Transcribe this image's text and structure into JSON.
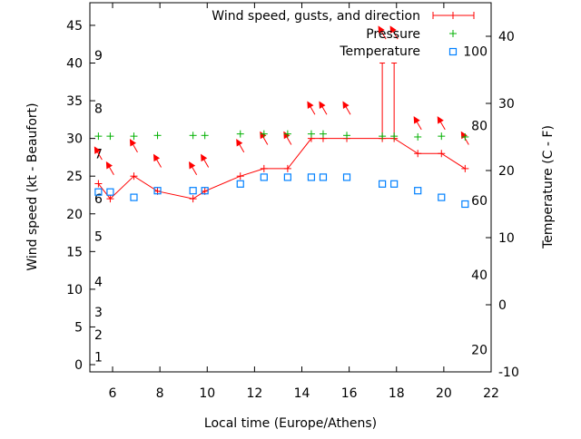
{
  "chart_data": {
    "type": "line",
    "xlabel": "Local time (Europe/Athens)",
    "ylabel": "Wind speed (kt - Beaufort)",
    "y2label": "Temperature (C - F)",
    "xlim": [
      5.04,
      22
    ],
    "ylim": [
      -0.96,
      48
    ],
    "y2lim": [
      -10,
      45
    ],
    "xticks": [
      6,
      8,
      10,
      12,
      14,
      16,
      18,
      20,
      22
    ],
    "yticks": [
      0,
      5,
      10,
      15,
      20,
      25,
      30,
      35,
      40,
      45
    ],
    "y2ticks": [
      -10,
      0,
      10,
      20,
      30,
      40
    ],
    "beaufort_labels": [
      {
        "label": "1",
        "kt": 1
      },
      {
        "label": "2",
        "kt": 4
      },
      {
        "label": "3",
        "kt": 7
      },
      {
        "label": "4",
        "kt": 11
      },
      {
        "label": "5",
        "kt": 17
      },
      {
        "label": "6",
        "kt": 22
      },
      {
        "label": "7",
        "kt": 28
      },
      {
        "label": "8",
        "kt": 34
      },
      {
        "label": "9",
        "kt": 41
      }
    ],
    "fahrenheit_labels": [
      {
        "label": "20",
        "f": 20
      },
      {
        "label": "40",
        "f": 40
      },
      {
        "label": "60",
        "f": 60
      },
      {
        "label": "80",
        "f": 80
      },
      {
        "label": "100",
        "f": 100
      }
    ],
    "legend": {
      "position": "top-right",
      "entries": [
        "Wind speed, gusts, and direction",
        "Pressure",
        "Temperature"
      ]
    },
    "colors": {
      "wind": "#ff0000",
      "pressure": "#00b000",
      "temperature": "#0080ff"
    },
    "x": [
      5.4,
      5.9,
      6.9,
      7.9,
      9.4,
      9.9,
      11.4,
      12.4,
      13.4,
      14.4,
      14.9,
      15.9,
      17.4,
      17.9,
      18.9,
      19.9,
      20.9
    ],
    "series": [
      {
        "name": "Wind speed",
        "axis": "y",
        "values": [
          24,
          22,
          25,
          23,
          22,
          23,
          25,
          26,
          26,
          30,
          30,
          30,
          30,
          30,
          28,
          28,
          26
        ]
      },
      {
        "name": "Gusts",
        "axis": "y",
        "values": [
          null,
          null,
          null,
          null,
          null,
          null,
          null,
          null,
          null,
          null,
          null,
          null,
          40,
          40,
          null,
          null,
          null
        ]
      },
      {
        "name": "Direction (deg from)",
        "axis": "none",
        "values": [
          330,
          330,
          330,
          330,
          330,
          330,
          330,
          330,
          330,
          330,
          330,
          330,
          330,
          330,
          330,
          330,
          330
        ]
      },
      {
        "name": "Pressure",
        "axis": "y",
        "values": [
          30.3,
          30.3,
          30.3,
          30.4,
          30.4,
          30.4,
          30.6,
          30.6,
          30.6,
          30.6,
          30.6,
          30.4,
          30.3,
          30.3,
          30.2,
          30.3,
          30.2
        ]
      },
      {
        "name": "Temperature",
        "axis": "y2",
        "values": [
          16.8,
          16.8,
          16,
          17,
          17,
          17,
          18,
          19,
          19,
          19,
          19,
          19,
          18,
          18,
          17,
          16,
          15
        ]
      }
    ]
  }
}
